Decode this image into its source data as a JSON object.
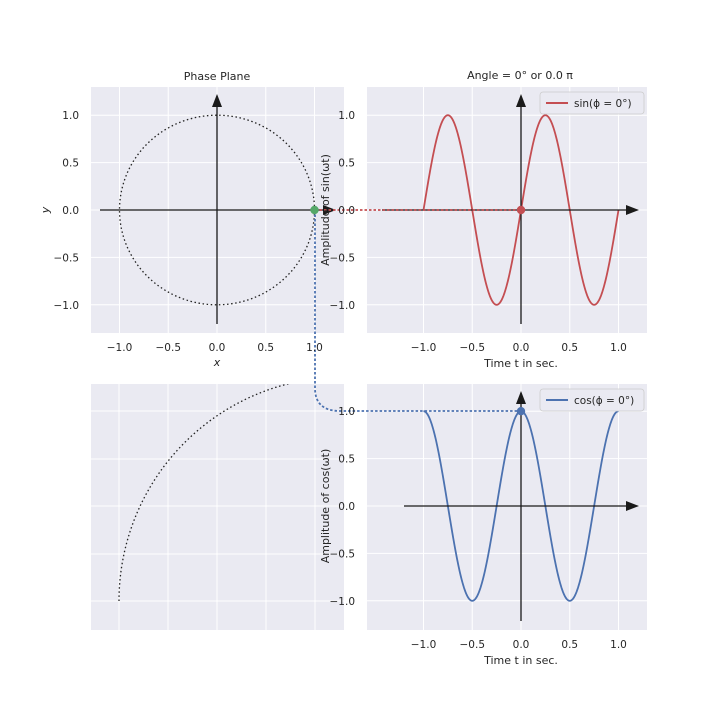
{
  "title_phase": "Phase Plane",
  "title_angle": "Angle =   0° or 0.0 π",
  "colors": {
    "bg": "#eaeaf2",
    "grid": "#ffffff",
    "sin": "#c44e52",
    "cos": "#4c72b0",
    "point": "#55a868",
    "axes": "#1a1a1a"
  },
  "chart_data": [
    {
      "type": "line",
      "name": "phase-plane",
      "title": "Phase Plane",
      "xlabel": "x",
      "ylabel": "y",
      "xlim": [
        -1.3,
        1.3
      ],
      "ylim": [
        -1.3,
        1.3
      ],
      "xticks": [
        "−1.0",
        "−0.5",
        "0.0",
        "0.5",
        "1.0"
      ],
      "yticks": [
        "1.0",
        "0.5",
        "0.0",
        "−0.5",
        "−1.0"
      ],
      "curve": "unit circle (dotted)",
      "point": {
        "x": 1.0,
        "y": 0.0
      },
      "grid": true
    },
    {
      "type": "line",
      "name": "sine",
      "title": "Angle =   0° or 0.0 π",
      "xlabel": "Time t in sec.",
      "ylabel": "Amplitude of sin(ωt)",
      "xlim": [
        -1.3,
        1.3
      ],
      "ylim": [
        -1.3,
        1.3
      ],
      "xticks": [
        "−1.0",
        "−0.5",
        "0.0",
        "0.5",
        "1.0"
      ],
      "yticks": [
        "1.0",
        "0.5",
        "0.0",
        "−0.5",
        "−1.0"
      ],
      "series": [
        {
          "name": "sin(ϕ = 0°)",
          "function": "sin(2πt)",
          "t_range": [
            -1.0,
            1.0
          ]
        }
      ],
      "point": {
        "x": 0.0,
        "y": 0.0
      },
      "legend": "top-right",
      "grid": true
    },
    {
      "type": "line",
      "name": "circle-zoom",
      "curve": "circle arc (dotted)",
      "grid": true
    },
    {
      "type": "line",
      "name": "cosine",
      "xlabel": "Time t in sec.",
      "ylabel": "Amplitude of cos(ωt)",
      "xlim": [
        -1.3,
        1.3
      ],
      "ylim": [
        -1.3,
        1.3
      ],
      "xticks": [
        "−1.0",
        "−0.5",
        "0.0",
        "0.5",
        "1.0"
      ],
      "yticks": [
        "1.0",
        "0.5",
        "0.0",
        "−0.5",
        "−1.0"
      ],
      "series": [
        {
          "name": "cos(ϕ = 0°)",
          "function": "cos(2πt)",
          "t_range": [
            -1.0,
            1.0
          ]
        }
      ],
      "point": {
        "x": 0.0,
        "y": 1.0
      },
      "legend": "top-right",
      "grid": true
    }
  ]
}
